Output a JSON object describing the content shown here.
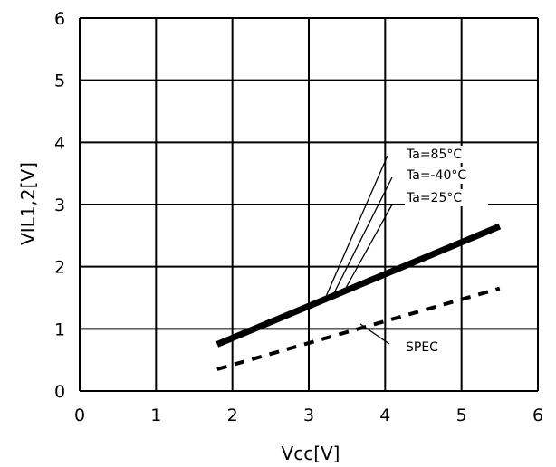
{
  "chart_data": {
    "type": "line",
    "xlabel": "Vcc[V]",
    "ylabel": "VIL1,2[V]",
    "xlim": [
      0,
      6
    ],
    "ylim": [
      0,
      6
    ],
    "grid": true,
    "x_ticks": [
      "0",
      "1",
      "2",
      "3",
      "4",
      "5",
      "6"
    ],
    "y_ticks": [
      "0",
      "1",
      "2",
      "3",
      "4",
      "5",
      "6"
    ],
    "series": [
      {
        "points": [
          [
            1.8,
            0.75
          ],
          [
            5.5,
            2.65
          ]
        ],
        "style": "solid",
        "color": "#000000"
      },
      {
        "name": "SPEC",
        "points": [
          [
            1.8,
            0.35
          ],
          [
            5.5,
            1.65
          ]
        ],
        "style": "dashed",
        "color": "#000000"
      }
    ],
    "annotations": [
      {
        "text": "Ta=85°C",
        "target": [
          3.2,
          1.45
        ]
      },
      {
        "text": "Ta=-40°C",
        "target": [
          3.3,
          1.5
        ]
      },
      {
        "text": "Ta=25°C",
        "target": [
          3.45,
          1.58
        ]
      }
    ]
  }
}
